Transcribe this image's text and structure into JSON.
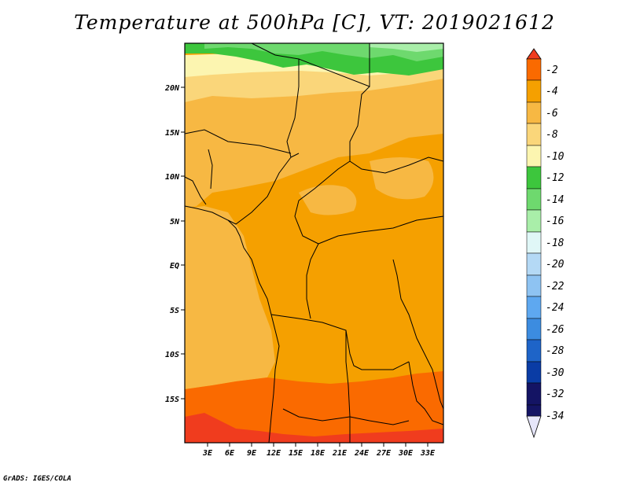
{
  "title": "Temperature at 500hPa [C], VT: 2019021612",
  "footer": "GrADS: IGES/COLA",
  "map": {
    "lat_labels": [
      "20N",
      "15N",
      "10N",
      "5N",
      "EQ",
      "5S",
      "10S",
      "15S"
    ],
    "lon_labels": [
      "3E",
      "6E",
      "9E",
      "12E",
      "15E",
      "18E",
      "21E",
      "24E",
      "27E",
      "30E",
      "33E"
    ]
  },
  "colorbar": {
    "labels": [
      "-2",
      "-4",
      "-6",
      "-8",
      "-10",
      "-12",
      "-14",
      "-16",
      "-18",
      "-20",
      "-22",
      "-24",
      "-26",
      "-28",
      "-30",
      "-32",
      "-34"
    ],
    "colors": [
      "#f03c1e",
      "#fa6a00",
      "#f5a000",
      "#f7b843",
      "#fad67a",
      "#fcf5b0",
      "#3dc63d",
      "#6ed96e",
      "#a9eea9",
      "#e0f7f7",
      "#b4d9f5",
      "#8ec3f2",
      "#5ea8f0",
      "#3c8ce0",
      "#1e64c8",
      "#0a3ca5",
      "#141464",
      "#e6e6fa"
    ]
  },
  "colors": {
    "zone_minus2": "#f03c1e",
    "zone_minus4": "#fa6a00",
    "zone_minus6": "#f5a000",
    "zone_minus8": "#f7b843",
    "zone_minus10": "#fad67a",
    "zone_minus12": "#fcf5b0",
    "zone_minus14": "#3dc63d",
    "zone_minus16": "#6ed96e",
    "zone_minus18": "#a9eea9"
  }
}
